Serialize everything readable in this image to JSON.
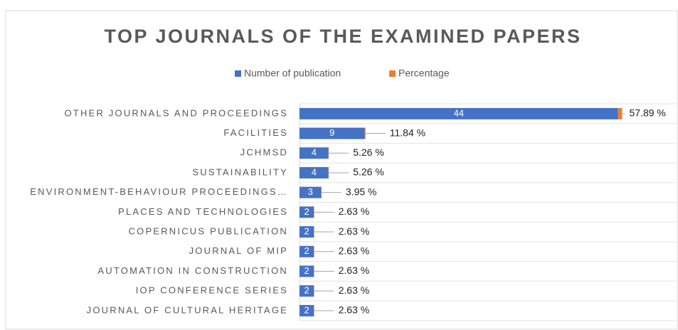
{
  "chart_data": {
    "type": "stacked-hbar",
    "title": "TOP JOURNALS OF THE EXAMINED PAPERS",
    "categories": [
      "OTHER JOURNALS AND PROCEEDINGS",
      "FACILITIES",
      "JCHMSD",
      "SUSTAINABILITY",
      "ENVIRONMENT-BEHAVIOUR PROCEEDINGS…",
      "PLACES AND TECHNOLOGIES",
      "COPERNICUS PUBLICATION",
      "JOURNAL OF MIP",
      "AUTOMATION IN CONSTRUCTION",
      "IOP CONFERENCE SERIES",
      "JOURNAL OF CULTURAL HERITAGE"
    ],
    "series": [
      {
        "name": "Number of publication",
        "color": "#4472c4",
        "values": [
          44,
          9,
          4,
          4,
          3,
          2,
          2,
          2,
          2,
          2,
          2
        ]
      },
      {
        "name": "Percentage",
        "color": "#ed7d31",
        "values": [
          0.5789,
          0.1184,
          0.0526,
          0.0526,
          0.0395,
          0.0263,
          0.0263,
          0.0263,
          0.0263,
          0.0263,
          0.0263
        ],
        "value_labels": [
          "57.89 %",
          "11.84 %",
          "5.26 %",
          "5.26 %",
          "3.95 %",
          "2.63 %",
          "2.63 %",
          "2.63 %",
          "2.63 %",
          "2.63 %",
          "2.63 %"
        ]
      }
    ],
    "xlim": [
      0,
      52
    ],
    "legend": "top"
  }
}
